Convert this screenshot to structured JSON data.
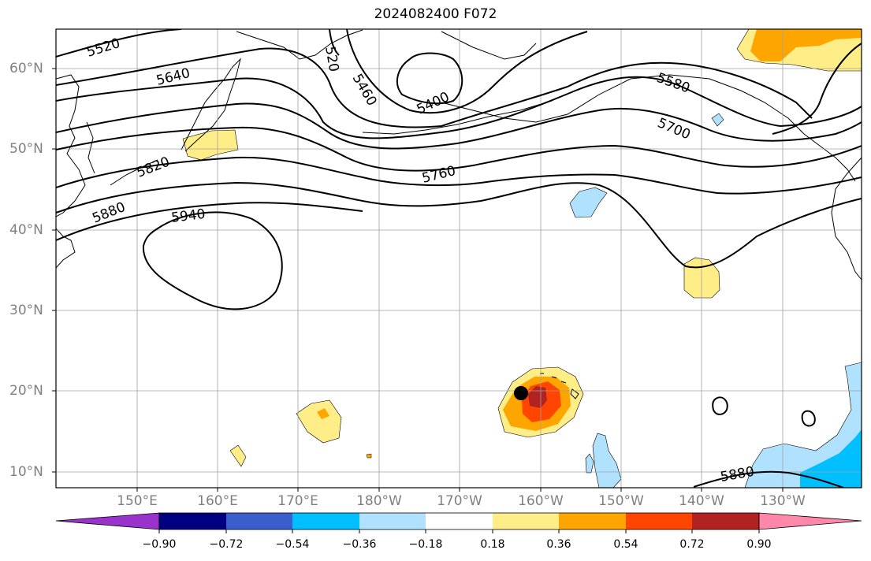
{
  "title": "2024082400 F072",
  "lat_labels": [
    "60°N",
    "50°N",
    "40°N",
    "30°N",
    "20°N",
    "10°N"
  ],
  "lon_labels": [
    "150°E",
    "160°E",
    "170°E",
    "180°W",
    "170°W",
    "160°W",
    "150°W",
    "140°W",
    "130°W"
  ],
  "contour_labels": [
    "5520",
    "5640",
    "520",
    "5460",
    "5400",
    "5580",
    "5700",
    "5760",
    "5820",
    "5880",
    "5940",
    "5880"
  ],
  "colorbar": {
    "tick_labels": [
      "−0.90",
      "−0.72",
      "−0.54",
      "−0.36",
      "−0.18",
      "0.18",
      "0.36",
      "0.54",
      "0.72",
      "0.90"
    ],
    "colors": [
      "#9933cc",
      "#000080",
      "#3a5fcd",
      "#00bfff",
      "#b0e2ff",
      "#ffffff",
      "#ffee88",
      "#ffa500",
      "#ff4500",
      "#b22222",
      "#ff88aa"
    ]
  },
  "storm_marker": {
    "lat": 19.8,
    "lon": -162.0
  }
}
